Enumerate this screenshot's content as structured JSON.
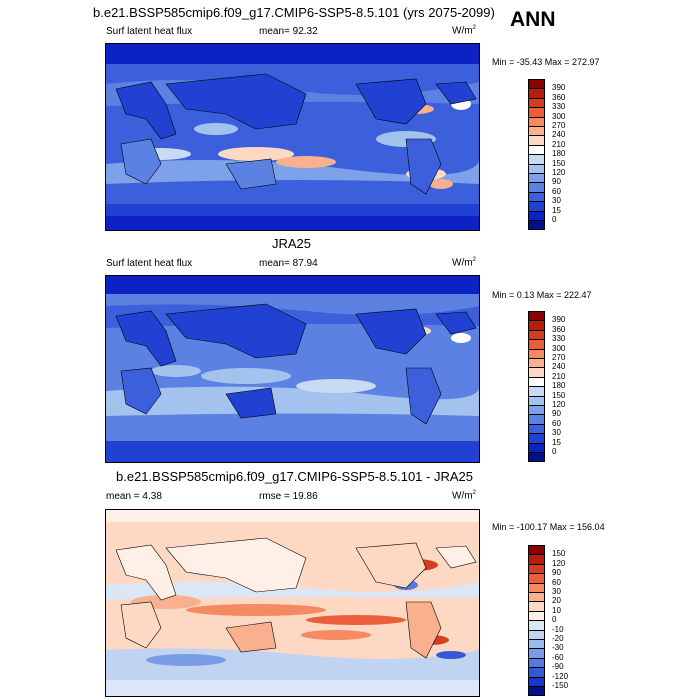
{
  "header": {
    "ann": "ANN"
  },
  "panels": [
    {
      "title": "b.e21.BSSP585cmip6.f09_g17.CMIP6-SSP5-8.5.101 (yrs 2075-2099)",
      "left_label": "Surf latent heat flux",
      "mid_label": "mean=  92.32",
      "units": "W/m",
      "units_sup": "2",
      "minmax": "Min = -35.43 Max = 272.97",
      "colorbar_labels": [
        "390",
        "360",
        "330",
        "300",
        "270",
        "240",
        "210",
        "180",
        "150",
        "120",
        "90",
        "60",
        "30",
        "15",
        "0"
      ],
      "colorbar_colors": [
        "#8b0000",
        "#b41f10",
        "#d43d1f",
        "#ea5f3a",
        "#f58a62",
        "#f9b08f",
        "#fdd8c2",
        "#ffffff",
        "#c9dbf3",
        "#a4c2ee",
        "#7ea2e9",
        "#5b82e3",
        "#3c60dc",
        "#2041d2",
        "#0d22c4",
        "#00118e"
      ]
    },
    {
      "title": "JRA25",
      "left_label": "Surf latent heat flux",
      "mid_label": "mean=  87.94",
      "units": "W/m",
      "units_sup": "2",
      "minmax": "Min =   0.13 Max = 222.47",
      "colorbar_labels": [
        "390",
        "360",
        "330",
        "300",
        "270",
        "240",
        "210",
        "180",
        "150",
        "120",
        "90",
        "60",
        "30",
        "15",
        "0"
      ],
      "colorbar_colors": [
        "#8b0000",
        "#b41f10",
        "#d43d1f",
        "#ea5f3a",
        "#f58a62",
        "#f9b08f",
        "#fdd8c2",
        "#ffffff",
        "#c9dbf3",
        "#a4c2ee",
        "#7ea2e9",
        "#5b82e3",
        "#3c60dc",
        "#2041d2",
        "#0d22c4",
        "#00118e"
      ]
    },
    {
      "title": "b.e21.BSSP585cmip6.f09_g17.CMIP6-SSP5-8.5.101 - JRA25",
      "left_label": "mean =   4.38",
      "mid_label": "rmse =  19.86",
      "units": "W/m",
      "units_sup": "2",
      "minmax": "Min = -100.17 Max = 156.04",
      "colorbar_labels": [
        "150",
        "120",
        "90",
        "60",
        "30",
        "20",
        "10",
        "0",
        "-10",
        "-20",
        "-30",
        "-60",
        "-90",
        "-120",
        "-150"
      ],
      "colorbar_colors": [
        "#8b0000",
        "#b41f10",
        "#d43d1f",
        "#ea5f3a",
        "#f58a62",
        "#f9b08f",
        "#fdd8c2",
        "#fef0e6",
        "#dbe6f6",
        "#c0d4f1",
        "#9dbaec",
        "#7a9be6",
        "#5479df",
        "#3558d6",
        "#1a35c8",
        "#00118e"
      ]
    }
  ]
}
